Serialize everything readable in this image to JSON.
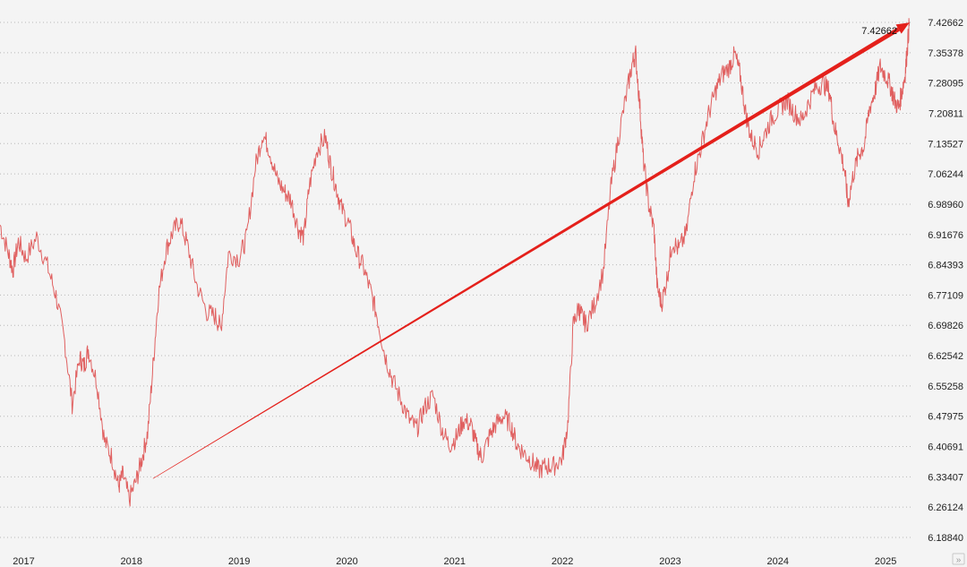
{
  "chart_data": {
    "type": "line",
    "colors": {
      "series": "#e06060",
      "trend": "#e4201b",
      "background": "#f4f4f4"
    },
    "y_ticks": [
      "7.42662",
      "7.35378",
      "7.28095",
      "7.20811",
      "7.13527",
      "7.06244",
      "6.98960",
      "6.91676",
      "6.84393",
      "6.77109",
      "6.69826",
      "6.62542",
      "6.55258",
      "6.47975",
      "6.40691",
      "6.33407",
      "6.26124",
      "6.18840"
    ],
    "x_ticks": [
      "2017",
      "2018",
      "2019",
      "2020",
      "2021",
      "2022",
      "2023",
      "2024",
      "2025"
    ],
    "ylim": [
      6.1884,
      7.42662
    ],
    "xlim": [
      2016.78,
      2025.24
    ],
    "grid": "horizontal dotted",
    "last_value": "7.42662",
    "series": [
      {
        "x": [
          2016.78,
          2016.86,
          2016.9,
          2016.95,
          2017.02,
          2017.12,
          2017.22,
          2017.3,
          2017.38,
          2017.45,
          2017.52,
          2017.56,
          2017.6,
          2017.68,
          2017.75,
          2017.82,
          2017.88,
          2017.92,
          2017.98,
          2018.05,
          2018.1,
          2018.15,
          2018.2,
          2018.25,
          2018.32,
          2018.38,
          2018.45,
          2018.52,
          2018.6,
          2018.7,
          2018.78,
          2018.83,
          2018.9,
          2019.0,
          2019.07,
          2019.15,
          2019.22,
          2019.28,
          2019.35,
          2019.42,
          2019.48,
          2019.55,
          2019.6,
          2019.65,
          2019.72,
          2019.8,
          2019.85,
          2019.9,
          2019.95,
          2020.02,
          2020.08,
          2020.15,
          2020.22,
          2020.28,
          2020.35,
          2020.42,
          2020.5,
          2020.58,
          2020.65,
          2020.72,
          2020.8,
          2020.88,
          2020.95,
          2021.02,
          2021.08,
          2021.15,
          2021.2,
          2021.25,
          2021.32,
          2021.38,
          2021.45,
          2021.52,
          2021.58,
          2021.65,
          2021.72,
          2021.78,
          2021.85,
          2021.92,
          2022.0,
          2022.05,
          2022.1,
          2022.15,
          2022.18,
          2022.22,
          2022.3,
          2022.38,
          2022.45,
          2022.52,
          2022.6,
          2022.65,
          2022.68,
          2022.72,
          2022.75,
          2022.8,
          2022.85,
          2022.88,
          2022.92,
          2022.97,
          2023.02,
          2023.08,
          2023.15,
          2023.22,
          2023.28,
          2023.35,
          2023.42,
          2023.48,
          2023.55,
          2023.6,
          2023.65,
          2023.7,
          2023.75,
          2023.82,
          2023.88,
          2023.95,
          2024.02,
          2024.08,
          2024.15,
          2024.22,
          2024.28,
          2024.35,
          2024.42,
          2024.48,
          2024.52,
          2024.57,
          2024.62,
          2024.65,
          2024.7,
          2024.75,
          2024.8,
          2024.85,
          2024.9,
          2024.95,
          2025.0,
          2025.05,
          2025.08,
          2025.12,
          2025.15,
          2025.18,
          2025.2,
          2025.22
        ],
        "values": [
          6.94,
          6.87,
          6.83,
          6.9,
          6.86,
          6.91,
          6.84,
          6.77,
          6.66,
          6.51,
          6.62,
          6.6,
          6.64,
          6.56,
          6.42,
          6.38,
          6.31,
          6.34,
          6.28,
          6.33,
          6.38,
          6.44,
          6.6,
          6.77,
          6.88,
          6.92,
          6.95,
          6.89,
          6.8,
          6.73,
          6.72,
          6.69,
          6.87,
          6.86,
          6.91,
          7.08,
          7.16,
          7.12,
          7.05,
          7.02,
          7.0,
          6.93,
          6.91,
          7.03,
          7.12,
          7.15,
          7.08,
          7.03,
          6.98,
          6.94,
          6.88,
          6.84,
          6.78,
          6.72,
          6.63,
          6.57,
          6.52,
          6.47,
          6.45,
          6.5,
          6.53,
          6.45,
          6.41,
          6.43,
          6.47,
          6.46,
          6.41,
          6.38,
          6.43,
          6.46,
          6.48,
          6.46,
          6.41,
          6.39,
          6.37,
          6.35,
          6.36,
          6.36,
          6.38,
          6.46,
          6.7,
          6.74,
          6.72,
          6.7,
          6.75,
          6.83,
          7.03,
          7.15,
          7.26,
          7.33,
          7.35,
          7.22,
          7.1,
          6.99,
          6.93,
          6.79,
          6.75,
          6.81,
          6.9,
          6.88,
          6.92,
          7.06,
          7.12,
          7.2,
          7.26,
          7.3,
          7.32,
          7.35,
          7.3,
          7.21,
          7.15,
          7.12,
          7.16,
          7.2,
          7.22,
          7.24,
          7.21,
          7.19,
          7.23,
          7.27,
          7.28,
          7.26,
          7.18,
          7.13,
          7.07,
          6.99,
          7.06,
          7.11,
          7.13,
          7.22,
          7.26,
          7.32,
          7.3,
          7.27,
          7.24,
          7.22,
          7.26,
          7.3,
          7.36,
          7.42662
        ]
      }
    ],
    "trend_line": {
      "x": [
        2018.2,
        2025.22
      ],
      "y": [
        6.33,
        7.426
      ]
    }
  },
  "toolbar": {
    "scroll_glyph": "»"
  }
}
